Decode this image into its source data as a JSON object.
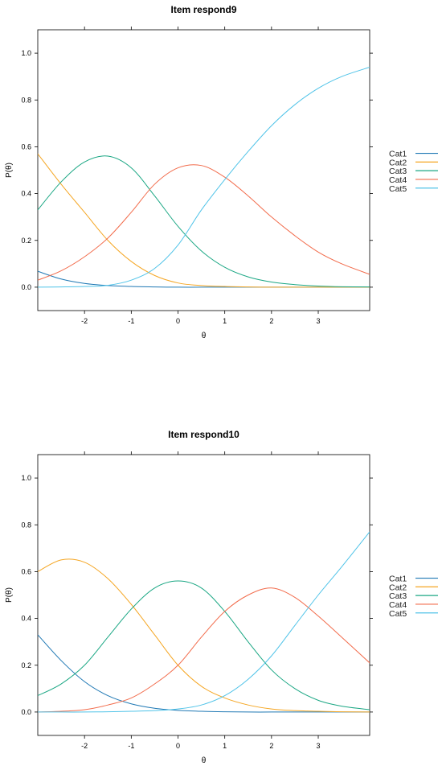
{
  "chart_data": [
    {
      "type": "line",
      "title": "Item respond9",
      "xlabel": "θ",
      "ylabel": "P(θ)",
      "xlim": [
        -3,
        4.1
      ],
      "ylim": [
        -0.1,
        1.1
      ],
      "xticks": [
        -2,
        -1,
        0,
        1,
        2,
        3
      ],
      "xtick_labels": [
        "-2",
        "-1",
        "0",
        "1",
        "2",
        "3"
      ],
      "yticks": [
        0.0,
        0.2,
        0.4,
        0.6,
        0.8,
        1.0
      ],
      "ytick_labels": [
        "0.0",
        "0.2",
        "0.4",
        "0.6",
        "0.8",
        "1.0"
      ],
      "legend": "right",
      "x": [
        -3.0,
        -2.5,
        -2.0,
        -1.5,
        -1.0,
        -0.5,
        0.0,
        0.5,
        1.0,
        1.5,
        2.0,
        2.5,
        3.0,
        3.5,
        4.1
      ],
      "series": [
        {
          "name": "Cat1",
          "color": "#1F78B4",
          "values": [
            0.068,
            0.035,
            0.016,
            0.007,
            0.003,
            0.001,
            0.0,
            0.0,
            0.0,
            0.0,
            0.0,
            0.0,
            0.0,
            0.0,
            0.0
          ]
        },
        {
          "name": "Cat2",
          "color": "#F5A623",
          "values": [
            0.57,
            0.44,
            0.32,
            0.2,
            0.11,
            0.05,
            0.018,
            0.007,
            0.003,
            0.001,
            0.0,
            0.0,
            0.0,
            0.0,
            0.0
          ]
        },
        {
          "name": "Cat3",
          "color": "#1BA784",
          "values": [
            0.33,
            0.45,
            0.535,
            0.56,
            0.51,
            0.39,
            0.26,
            0.155,
            0.085,
            0.044,
            0.022,
            0.011,
            0.005,
            0.002,
            0.001
          ]
        },
        {
          "name": "Cat4",
          "color": "#F26B4B",
          "values": [
            0.03,
            0.07,
            0.13,
            0.21,
            0.32,
            0.44,
            0.51,
            0.52,
            0.47,
            0.39,
            0.3,
            0.22,
            0.15,
            0.1,
            0.055
          ]
        },
        {
          "name": "Cat5",
          "color": "#4FC3E8",
          "values": [
            0.0,
            0.001,
            0.003,
            0.008,
            0.03,
            0.08,
            0.18,
            0.33,
            0.46,
            0.58,
            0.69,
            0.78,
            0.85,
            0.9,
            0.94
          ]
        }
      ]
    },
    {
      "type": "line",
      "title": "Item respond10",
      "xlabel": "θ",
      "ylabel": "P(θ)",
      "xlim": [
        -3,
        4.1
      ],
      "ylim": [
        -0.1,
        1.1
      ],
      "xticks": [
        -2,
        -1,
        0,
        1,
        2,
        3
      ],
      "xtick_labels": [
        "-2",
        "-1",
        "0",
        "1",
        "2",
        "3"
      ],
      "yticks": [
        0.0,
        0.2,
        0.4,
        0.6,
        0.8,
        1.0
      ],
      "ytick_labels": [
        "0.0",
        "0.2",
        "0.4",
        "0.6",
        "0.8",
        "1.0"
      ],
      "legend": "right",
      "x": [
        -3.0,
        -2.5,
        -2.0,
        -1.5,
        -1.0,
        -0.5,
        0.0,
        0.5,
        1.0,
        1.5,
        2.0,
        2.5,
        3.0,
        3.5,
        4.1
      ],
      "series": [
        {
          "name": "Cat1",
          "color": "#1F78B4",
          "values": [
            0.33,
            0.22,
            0.13,
            0.07,
            0.035,
            0.016,
            0.007,
            0.003,
            0.001,
            0.0,
            0.0,
            0.0,
            0.0,
            0.0,
            0.0
          ]
        },
        {
          "name": "Cat2",
          "color": "#F5A623",
          "values": [
            0.6,
            0.65,
            0.64,
            0.57,
            0.46,
            0.33,
            0.2,
            0.11,
            0.06,
            0.03,
            0.013,
            0.006,
            0.003,
            0.001,
            0.0
          ]
        },
        {
          "name": "Cat3",
          "color": "#1BA784",
          "values": [
            0.07,
            0.12,
            0.2,
            0.32,
            0.44,
            0.53,
            0.56,
            0.53,
            0.43,
            0.3,
            0.18,
            0.1,
            0.05,
            0.025,
            0.01
          ]
        },
        {
          "name": "Cat4",
          "color": "#F26B4B",
          "values": [
            0.0,
            0.003,
            0.01,
            0.03,
            0.06,
            0.12,
            0.2,
            0.32,
            0.43,
            0.5,
            0.53,
            0.49,
            0.41,
            0.32,
            0.21
          ]
        },
        {
          "name": "Cat5",
          "color": "#4FC3E8",
          "values": [
            0.0,
            0.0,
            0.0,
            0.001,
            0.003,
            0.006,
            0.013,
            0.03,
            0.07,
            0.14,
            0.24,
            0.37,
            0.5,
            0.62,
            0.77
          ]
        }
      ]
    }
  ]
}
